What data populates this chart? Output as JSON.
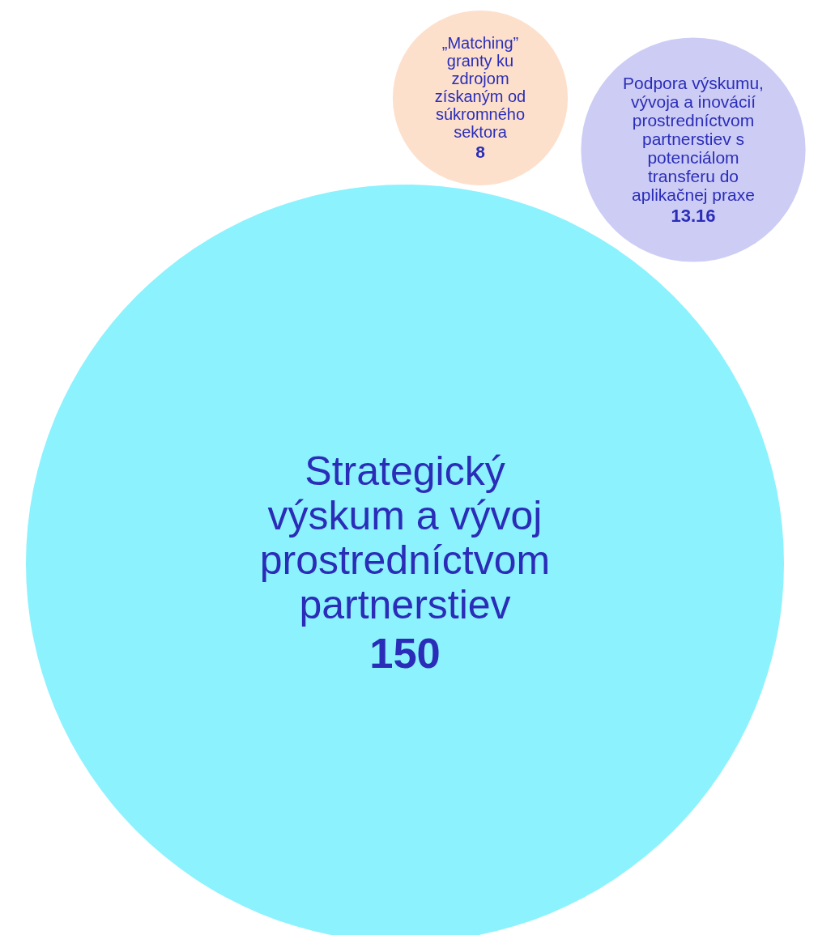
{
  "chart_data": {
    "type": "other",
    "categories": [
      "Strategický výskum a vývoj prostredníctvom partnerstiev",
      "„Matching” granty ku zdrojom získaným od súkromného sektora",
      "Podpora výskumu, vývoja a inovácií prostredníctvom partnerstiev s potenciálom transferu do aplikačnej praxe"
    ],
    "values": [
      150,
      8,
      13.16
    ],
    "colors": [
      "#8cf2fd",
      "#fde0cc",
      "#cdccf5"
    ],
    "data_labels": true
  }
}
